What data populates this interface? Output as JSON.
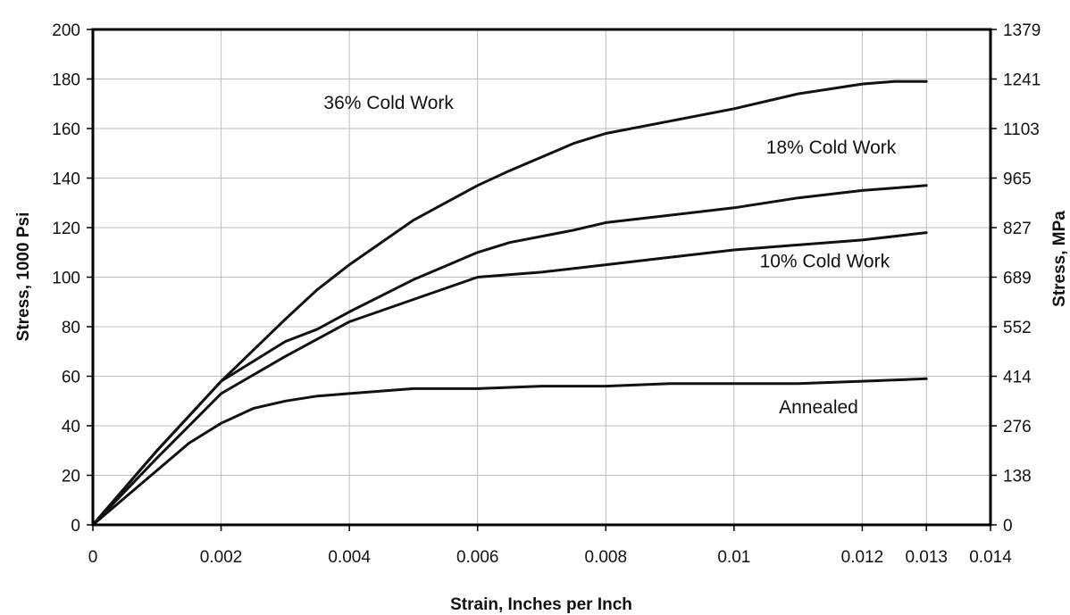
{
  "chart_data": {
    "type": "line",
    "xlabel": "Strain, Inches per Inch",
    "ylabel": "Stress,  1000 Psi",
    "y2label": "Stress, MPa",
    "xlim": [
      0,
      0.014
    ],
    "ylim": [
      0,
      200
    ],
    "x_ticks": [
      "0",
      "0.002",
      "0.004",
      "0.006",
      "0.008",
      "0.01",
      "0.012",
      "0.013",
      "0.014"
    ],
    "x_tick_values": [
      0,
      0.002,
      0.004,
      0.006,
      0.008,
      0.01,
      0.012,
      0.013,
      0.014
    ],
    "y_ticks": [
      "0",
      "20",
      "40",
      "60",
      "80",
      "100",
      "120",
      "140",
      "160",
      "180",
      "200"
    ],
    "y_tick_values": [
      0,
      20,
      40,
      60,
      80,
      100,
      120,
      140,
      160,
      180,
      200
    ],
    "y2_ticks": [
      "0",
      "138",
      "276",
      "414",
      "552",
      "689",
      "827",
      "965",
      "1103",
      "1241",
      "1379"
    ],
    "grid": true,
    "legend": "none",
    "series": [
      {
        "name": "36% Cold Work",
        "x": [
          0,
          0.001,
          0.002,
          0.003,
          0.0035,
          0.004,
          0.005,
          0.006,
          0.0065,
          0.0075,
          0.008,
          0.009,
          0.01,
          0.011,
          0.0115,
          0.012,
          0.0125,
          0.013
        ],
        "y": [
          0,
          30,
          58,
          83,
          95,
          105,
          123,
          137,
          143,
          154,
          158,
          163,
          168,
          174,
          176,
          178,
          179,
          179
        ]
      },
      {
        "name": "18% Cold Work",
        "x": [
          0,
          0.001,
          0.002,
          0.003,
          0.0035,
          0.004,
          0.005,
          0.006,
          0.0065,
          0.0075,
          0.008,
          0.009,
          0.01,
          0.011,
          0.012,
          0.0125,
          0.013
        ],
        "y": [
          0,
          30,
          58,
          74,
          79,
          86,
          99,
          110,
          114,
          119,
          122,
          125,
          128,
          132,
          135,
          136,
          137
        ]
      },
      {
        "name": "10% Cold Work",
        "x": [
          0,
          0.001,
          0.002,
          0.003,
          0.004,
          0.005,
          0.006,
          0.007,
          0.008,
          0.009,
          0.01,
          0.011,
          0.012,
          0.013
        ],
        "y": [
          0,
          27,
          53,
          68,
          82,
          91,
          100,
          102,
          105,
          108,
          111,
          113,
          115,
          118
        ]
      },
      {
        "name": "Annealed",
        "x": [
          0,
          0.0015,
          0.002,
          0.0025,
          0.003,
          0.0035,
          0.004,
          0.005,
          0.006,
          0.007,
          0.008,
          0.009,
          0.01,
          0.011,
          0.012,
          0.013
        ],
        "y": [
          0,
          33,
          41,
          47,
          50,
          52,
          53,
          55,
          55,
          56,
          56,
          57,
          57,
          57,
          58,
          59
        ]
      }
    ],
    "annotations": [
      {
        "text": "36% Cold Work",
        "x": 0.0036,
        "y": 168
      },
      {
        "text": "18% Cold Work",
        "x": 0.0105,
        "y": 150
      },
      {
        "text": "10% Cold Work",
        "x": 0.0104,
        "y": 104
      },
      {
        "text": "Annealed",
        "x": 0.0107,
        "y": 45
      }
    ]
  }
}
